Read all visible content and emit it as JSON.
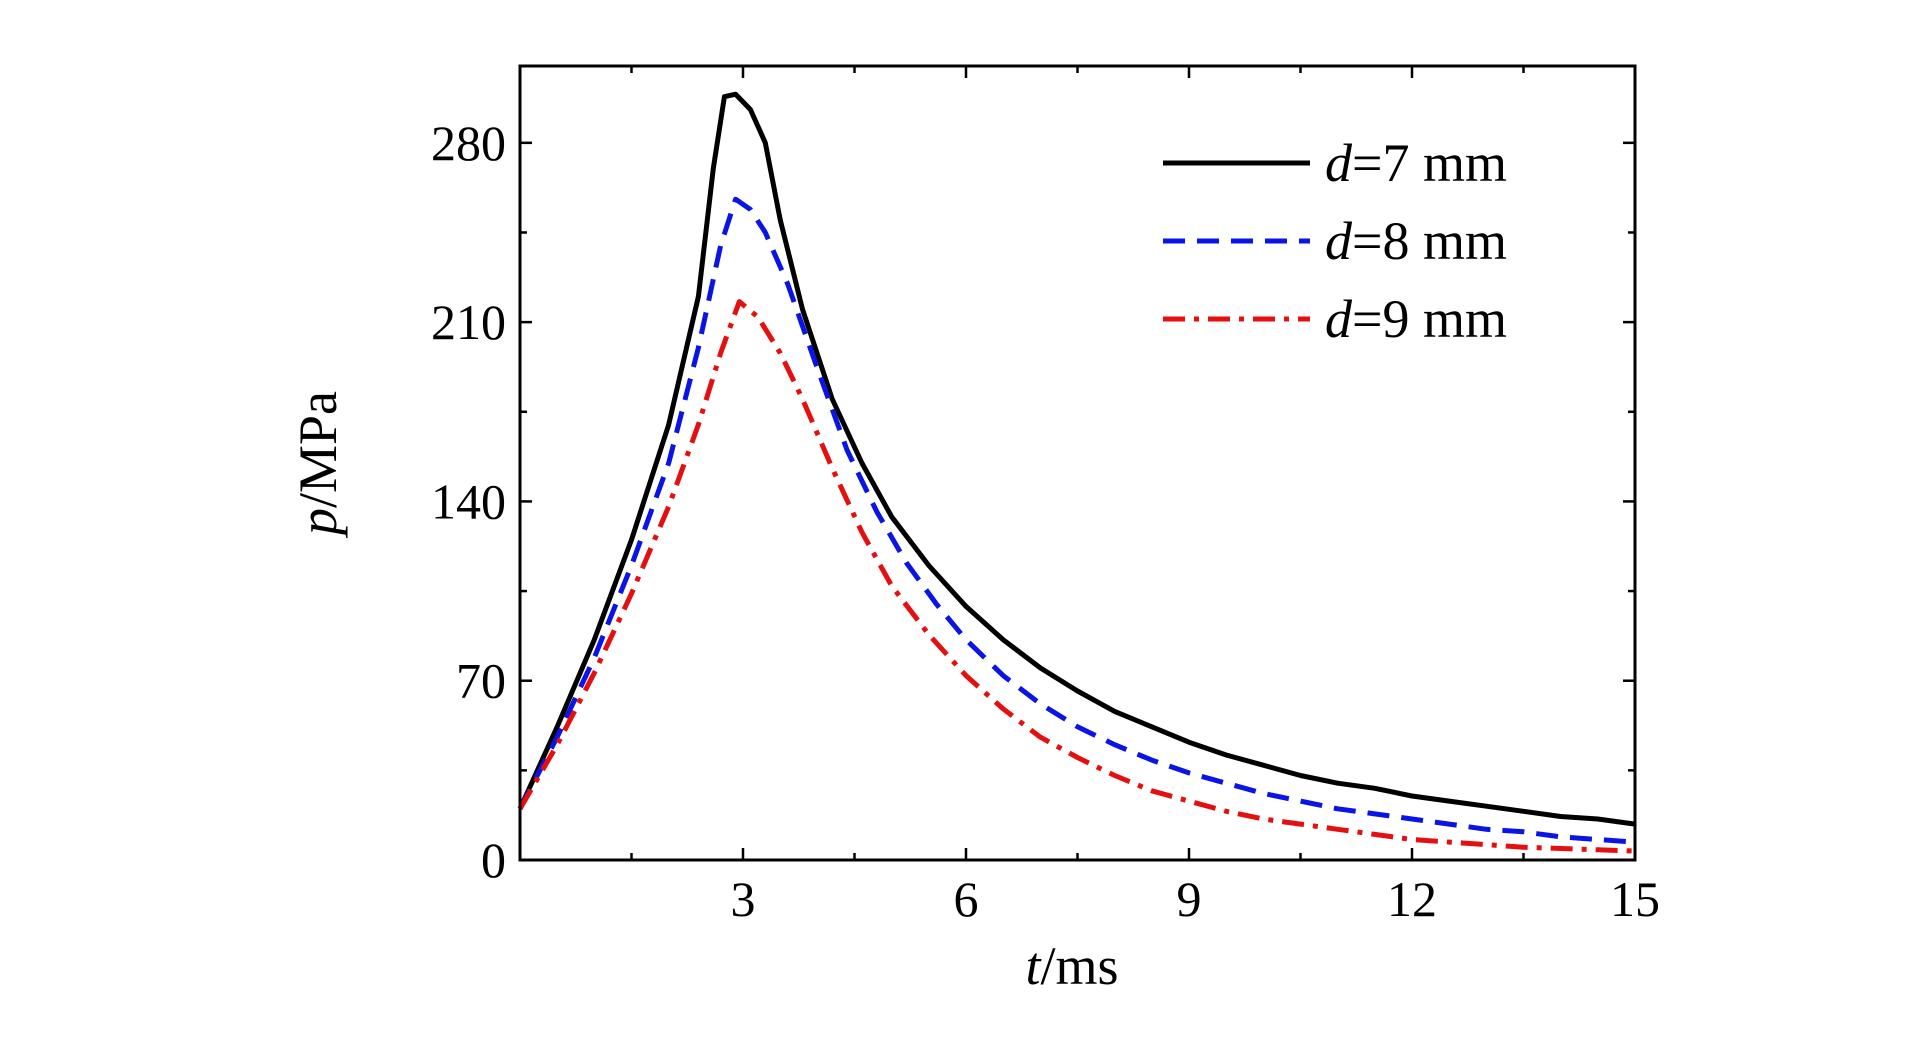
{
  "chart_data": {
    "type": "line",
    "xlabel": {
      "var": "t",
      "unit": "/ms"
    },
    "ylabel": {
      "var": "p",
      "unit": "/MPa"
    },
    "xlim": [
      0,
      15
    ],
    "ylim": [
      0,
      310
    ],
    "x_ticks": [
      3,
      6,
      9,
      12,
      15
    ],
    "y_ticks": [
      0,
      70,
      140,
      210,
      280
    ],
    "x_minor_step": 1.5,
    "y_minor_step": 35,
    "grid": false,
    "legend_position": "top-right",
    "series": [
      {
        "name_var": "d",
        "name_rest": "=7 mm",
        "color": "#000000",
        "style": "solid",
        "points": [
          [
            0,
            20
          ],
          [
            0.5,
            52
          ],
          [
            1.0,
            86
          ],
          [
            1.5,
            125
          ],
          [
            2.0,
            170
          ],
          [
            2.4,
            220
          ],
          [
            2.6,
            270
          ],
          [
            2.75,
            298
          ],
          [
            2.9,
            299
          ],
          [
            3.1,
            293
          ],
          [
            3.3,
            280
          ],
          [
            3.5,
            250
          ],
          [
            3.8,
            215
          ],
          [
            4.2,
            180
          ],
          [
            4.6,
            155
          ],
          [
            5.0,
            134
          ],
          [
            5.5,
            115
          ],
          [
            6.0,
            99
          ],
          [
            6.5,
            86
          ],
          [
            7.0,
            75
          ],
          [
            7.5,
            66
          ],
          [
            8.0,
            58
          ],
          [
            8.5,
            52
          ],
          [
            9.0,
            46
          ],
          [
            9.5,
            41
          ],
          [
            10.0,
            37
          ],
          [
            10.5,
            33
          ],
          [
            11.0,
            30
          ],
          [
            11.5,
            28
          ],
          [
            12.0,
            25
          ],
          [
            12.5,
            23
          ],
          [
            13.0,
            21
          ],
          [
            13.5,
            19
          ],
          [
            14.0,
            17
          ],
          [
            14.5,
            16
          ],
          [
            15.0,
            14
          ]
        ]
      },
      {
        "name_var": "d",
        "name_rest": "=8 mm",
        "color": "#0a14e6",
        "style": "dashed",
        "points": [
          [
            0,
            20
          ],
          [
            0.5,
            48
          ],
          [
            1.0,
            79
          ],
          [
            1.5,
            115
          ],
          [
            2.0,
            155
          ],
          [
            2.4,
            200
          ],
          [
            2.7,
            240
          ],
          [
            2.9,
            258
          ],
          [
            3.1,
            254
          ],
          [
            3.3,
            245
          ],
          [
            3.6,
            225
          ],
          [
            4.0,
            192
          ],
          [
            4.4,
            160
          ],
          [
            4.8,
            136
          ],
          [
            5.2,
            116
          ],
          [
            5.6,
            100
          ],
          [
            6.0,
            86
          ],
          [
            6.5,
            72
          ],
          [
            7.0,
            61
          ],
          [
            7.5,
            52
          ],
          [
            8.0,
            45
          ],
          [
            8.5,
            39
          ],
          [
            9.0,
            34
          ],
          [
            9.5,
            30
          ],
          [
            10.0,
            26
          ],
          [
            10.5,
            23
          ],
          [
            11.0,
            20
          ],
          [
            11.5,
            18
          ],
          [
            12.0,
            16
          ],
          [
            12.5,
            14
          ],
          [
            13.0,
            12
          ],
          [
            13.5,
            11
          ],
          [
            14.0,
            9
          ],
          [
            14.5,
            8
          ],
          [
            15.0,
            7
          ]
        ]
      },
      {
        "name_var": "d",
        "name_rest": "=9 mm",
        "color": "#e60f0f",
        "style": "dashdot",
        "points": [
          [
            0,
            20
          ],
          [
            0.5,
            45
          ],
          [
            1.0,
            73
          ],
          [
            1.5,
            104
          ],
          [
            2.0,
            138
          ],
          [
            2.4,
            170
          ],
          [
            2.7,
            198
          ],
          [
            2.95,
            218
          ],
          [
            3.2,
            212
          ],
          [
            3.5,
            198
          ],
          [
            3.8,
            180
          ],
          [
            4.2,
            153
          ],
          [
            4.6,
            128
          ],
          [
            5.0,
            107
          ],
          [
            5.5,
            88
          ],
          [
            6.0,
            72
          ],
          [
            6.5,
            59
          ],
          [
            7.0,
            48
          ],
          [
            7.5,
            40
          ],
          [
            8.0,
            33
          ],
          [
            8.5,
            27
          ],
          [
            9.0,
            23
          ],
          [
            9.5,
            19
          ],
          [
            10.0,
            16
          ],
          [
            10.5,
            14
          ],
          [
            11.0,
            12
          ],
          [
            11.5,
            10
          ],
          [
            12.0,
            8
          ],
          [
            12.5,
            7
          ],
          [
            13.0,
            6
          ],
          [
            13.5,
            5
          ],
          [
            14.0,
            4.5
          ],
          [
            14.5,
            4
          ],
          [
            15.0,
            3.5
          ]
        ]
      }
    ]
  }
}
